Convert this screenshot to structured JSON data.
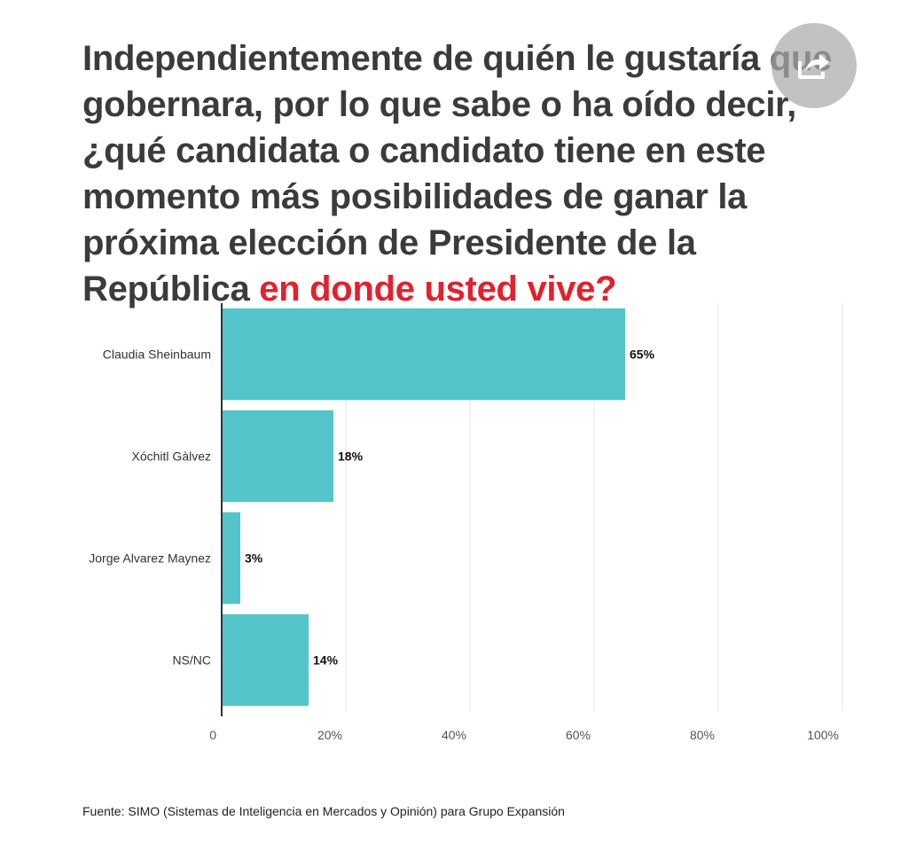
{
  "title": {
    "main": "Independientemente de quién le gustaría que gobernara, por lo que sabe o ha oído decir, ¿qué candidata o candidato tiene en este momento más posibilidades de ganar la próxima elección de Presidente de la República ",
    "highlight": "en donde usted vive?"
  },
  "share": {
    "icon": "share-icon"
  },
  "chart_data": {
    "type": "bar",
    "orientation": "horizontal",
    "categories": [
      "Claudia Sheinbaum",
      "Xóchitl Gàlvez",
      "Jorge Alvarez Maynez",
      "NS/NC"
    ],
    "values": [
      65,
      18,
      3,
      14
    ],
    "data_labels": [
      "65%",
      "18%",
      "3%",
      "14%"
    ],
    "x_ticks": [
      {
        "value": 0,
        "label": "0"
      },
      {
        "value": 20,
        "label": "20%"
      },
      {
        "value": 40,
        "label": "40%"
      },
      {
        "value": 60,
        "label": "60%"
      },
      {
        "value": 80,
        "label": "80%"
      },
      {
        "value": 100,
        "label": "100%"
      }
    ],
    "xlim": [
      0,
      100
    ],
    "grid": true,
    "bar_color": "#54c4cb"
  },
  "source": "Fuente: SIMO (Sistemas de Inteligencia en Mercados y Opinión) para Grupo Expansión"
}
